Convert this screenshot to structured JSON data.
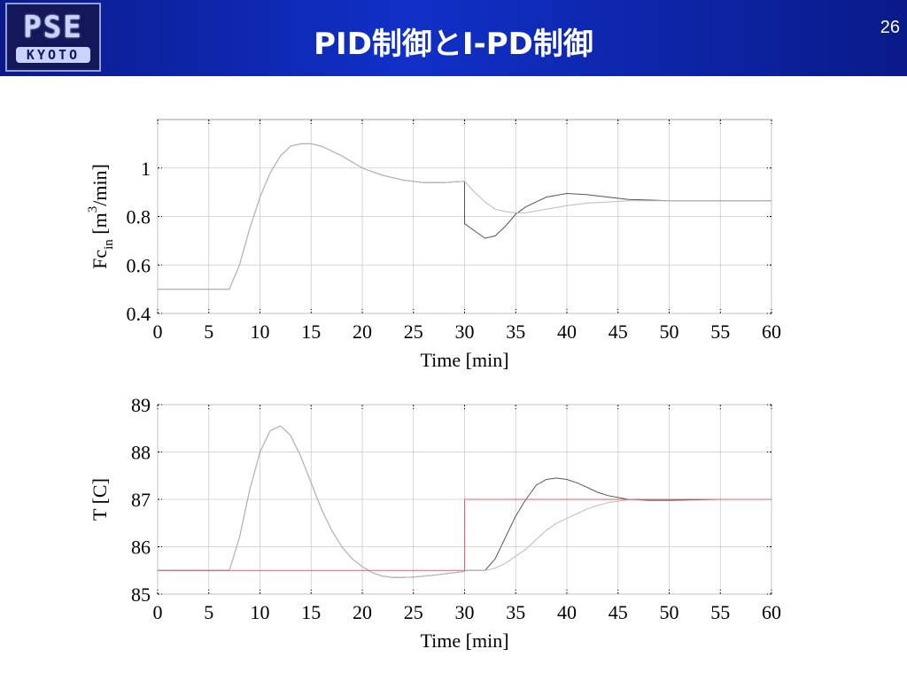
{
  "header": {
    "title": "PID制御とI-PD制御",
    "page": "26",
    "logo": [
      "PSE",
      "KYOTO"
    ]
  },
  "chart_data": [
    {
      "type": "line",
      "xlabel": "Time [min]",
      "ylabel": [
        {
          "text": "Fc"
        },
        {
          "text": "in",
          "shift": "sub"
        },
        {
          "text": " [m"
        },
        {
          "text": "3",
          "shift": "super"
        },
        {
          "text": "/min]"
        }
      ],
      "x": [
        0,
        7,
        8,
        9,
        10,
        11,
        12,
        13,
        14,
        15,
        16,
        17,
        18,
        20,
        22,
        24,
        26,
        28,
        30,
        30,
        31,
        32,
        33,
        34,
        35,
        36,
        38,
        40,
        42,
        44,
        46,
        48,
        50,
        55,
        60
      ],
      "series": [
        {
          "color": "#555555",
          "values": [
            0.5,
            0.5,
            0.6,
            0.75,
            0.88,
            0.98,
            1.05,
            1.09,
            1.1,
            1.1,
            1.09,
            1.07,
            1.05,
            1.0,
            0.97,
            0.95,
            0.94,
            0.94,
            0.945,
            0.77,
            0.74,
            0.71,
            0.72,
            0.76,
            0.81,
            0.84,
            0.88,
            0.895,
            0.89,
            0.88,
            0.87,
            0.868,
            0.865,
            0.865,
            0.865
          ]
        },
        {
          "color": "#bbbbbb",
          "values": [
            0.5,
            0.5,
            0.6,
            0.75,
            0.88,
            0.98,
            1.05,
            1.09,
            1.1,
            1.1,
            1.09,
            1.07,
            1.05,
            1.0,
            0.97,
            0.95,
            0.94,
            0.94,
            0.945,
            0.945,
            0.9,
            0.86,
            0.83,
            0.82,
            0.815,
            0.815,
            0.83,
            0.845,
            0.855,
            0.86,
            0.865,
            0.865,
            0.865,
            0.865,
            0.865
          ]
        }
      ],
      "xlim": [
        0,
        60
      ],
      "xticks": [
        0,
        5,
        10,
        15,
        20,
        25,
        30,
        35,
        40,
        45,
        50,
        55,
        60
      ],
      "ylim": [
        0.4,
        1.2
      ],
      "yticks": [
        0.4,
        0.6,
        0.8,
        1
      ],
      "grid": true
    },
    {
      "type": "line",
      "xlabel": "Time [min]",
      "ylabel": [
        {
          "text": "T [C]"
        }
      ],
      "x": [
        0,
        7,
        8,
        9,
        10,
        11,
        12,
        13,
        14,
        15,
        16,
        17,
        18,
        19,
        20,
        21,
        22,
        23,
        24,
        25,
        27,
        30,
        30,
        32,
        33,
        34,
        35,
        36,
        37,
        38,
        39,
        40,
        41,
        42,
        43,
        44,
        46,
        48,
        50,
        55,
        60
      ],
      "series": [
        {
          "color": "#555555",
          "values": [
            85.5,
            85.5,
            86.2,
            87.2,
            88.0,
            88.45,
            88.55,
            88.35,
            87.9,
            87.35,
            86.8,
            86.35,
            86.0,
            85.75,
            85.58,
            85.45,
            85.38,
            85.35,
            85.35,
            85.36,
            85.4,
            85.48,
            85.5,
            85.5,
            85.75,
            86.2,
            86.65,
            87.0,
            87.3,
            87.42,
            87.45,
            87.42,
            87.35,
            87.25,
            87.15,
            87.08,
            87.0,
            86.98,
            86.98,
            87,
            87
          ]
        },
        {
          "color": "#bbbbbb",
          "values": [
            85.5,
            85.5,
            86.2,
            87.2,
            88.0,
            88.45,
            88.55,
            88.35,
            87.9,
            87.35,
            86.8,
            86.35,
            86.0,
            85.75,
            85.58,
            85.45,
            85.38,
            85.35,
            85.35,
            85.36,
            85.4,
            85.48,
            85.5,
            85.5,
            85.55,
            85.65,
            85.8,
            85.95,
            86.15,
            86.35,
            86.5,
            86.6,
            86.7,
            86.8,
            86.87,
            86.93,
            86.99,
            87,
            87,
            87,
            87
          ]
        },
        {
          "color": "#e06060",
          "values": [
            85.5,
            85.5,
            85.5,
            85.5,
            85.5,
            85.5,
            85.5,
            85.5,
            85.5,
            85.5,
            85.5,
            85.5,
            85.5,
            85.5,
            85.5,
            85.5,
            85.5,
            85.5,
            85.5,
            85.5,
            85.5,
            85.5,
            87,
            87,
            87,
            87,
            87,
            87,
            87,
            87,
            87,
            87,
            87,
            87,
            87,
            87,
            87,
            87,
            87,
            87,
            87
          ]
        }
      ],
      "xlim": [
        0,
        60
      ],
      "xticks": [
        0,
        5,
        10,
        15,
        20,
        25,
        30,
        35,
        40,
        45,
        50,
        55,
        60
      ],
      "ylim": [
        85,
        89
      ],
      "yticks": [
        85,
        86,
        87,
        88,
        89
      ],
      "grid": true
    }
  ]
}
